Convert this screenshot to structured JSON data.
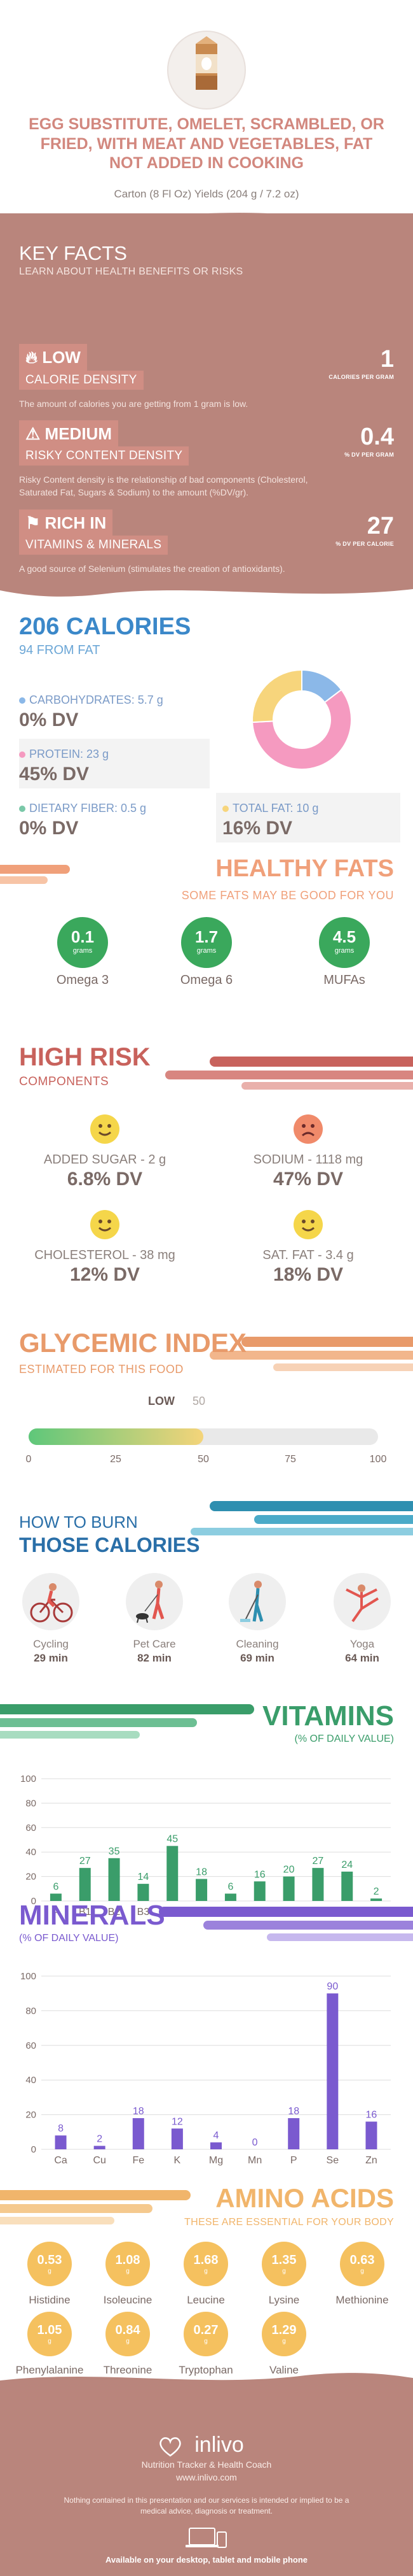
{
  "header": {
    "title": "EGG SUBSTITUTE, OMELET, SCRAMBLED, OR FRIED, WITH MEAT AND VEGETABLES, FAT NOT ADDED IN COOKING",
    "serving": "Carton (8 Fl Oz) Yields (204 g / 7.2 oz)"
  },
  "key_facts": {
    "title": "KEY FACTS",
    "subtitle": "LEARN ABOUT HEALTH BENEFITS OR RISKS",
    "items": [
      {
        "level": "LOW",
        "tag": "CALORIE DENSITY",
        "desc": "The amount of calories you are getting from 1 gram is low.",
        "value": "1",
        "unit": "CALORIES PER GRAM",
        "icon": "flame-icon"
      },
      {
        "level": "MEDIUM",
        "tag": "RISKY CONTENT DENSITY",
        "desc": "Risky Content density is the relationship of bad components (Cholesterol, Saturated Fat, Sugars & Sodium) to the amount (%DV/gr).",
        "value": "0.4",
        "unit": "% DV PER GRAM",
        "icon": "warning-icon"
      },
      {
        "level": "RICH IN",
        "tag": "VITAMINS & MINERALS",
        "desc": "A good source of Selenium (stimulates the creation of antioxidants).",
        "value": "27",
        "unit": "% DV PER CALORIE",
        "icon": "flag-icon"
      }
    ]
  },
  "calories": {
    "title": "206 CALORIES",
    "from_fat": "94 FROM FAT",
    "carbs_label": "CARBOHYDRATES: 5.7 g",
    "carbs_dv": "0% DV",
    "protein_label": "PROTEIN: 23 g",
    "protein_dv": "45% DV",
    "fiber_label": "DIETARY FIBER: 0.5 g",
    "fiber_dv": "0% DV",
    "fat_label": "TOTAL FAT: 10 g",
    "fat_dv": "16% DV",
    "donut": [
      {
        "name": "carbs",
        "value": 5.7,
        "color": "#8bb8e8"
      },
      {
        "name": "protein",
        "value": 23,
        "color": "#f59ac0"
      },
      {
        "name": "fat",
        "value": 10,
        "color": "#f7d57c"
      }
    ]
  },
  "fats": {
    "title": "HEALTHY FATS",
    "subtitle": "SOME FATS MAY BE GOOD FOR YOU",
    "unit": "grams",
    "items": [
      {
        "value": "0.1",
        "name": "Omega 3"
      },
      {
        "value": "1.7",
        "name": "Omega 6"
      },
      {
        "value": "4.5",
        "name": "MUFAs"
      }
    ]
  },
  "risk": {
    "title": "HIGH RISK",
    "subtitle": "COMPONENTS",
    "items": [
      {
        "label": "ADDED SUGAR - 2 g",
        "dv": "6.8% DV",
        "face": "happy",
        "color": "#f5d64a"
      },
      {
        "label": "SODIUM - 1118 mg",
        "dv": "47% DV",
        "face": "sad",
        "color": "#f08a6a"
      },
      {
        "label": "CHOLESTEROL - 38 mg",
        "dv": "12% DV",
        "face": "happy",
        "color": "#f5d64a"
      },
      {
        "label": "SAT. FAT - 3.4 g",
        "dv": "18% DV",
        "face": "happy",
        "color": "#f5d64a"
      }
    ]
  },
  "glycemic": {
    "title": "GLYCEMIC INDEX",
    "subtitle": "ESTIMATED FOR THIS FOOD",
    "level": "LOW",
    "value": "50",
    "fraction": 0.5,
    "ticks": [
      "0",
      "25",
      "50",
      "75",
      "100"
    ]
  },
  "burn": {
    "title1": "HOW TO BURN",
    "title2": "THOSE CALORIES",
    "items": [
      {
        "name": "Cycling",
        "min": "29 min",
        "icon": "cycling-icon"
      },
      {
        "name": "Pet Care",
        "min": "82 min",
        "icon": "dog-walking-icon"
      },
      {
        "name": "Cleaning",
        "min": "69 min",
        "icon": "cleaning-icon"
      },
      {
        "name": "Yoga",
        "min": "64 min",
        "icon": "yoga-icon"
      }
    ]
  },
  "vitamins": {
    "title": "VITAMINS",
    "subtitle": "(% OF DAILY VALUE)"
  },
  "minerals": {
    "title": "MINERALS",
    "subtitle": "(% OF DAILY VALUE)"
  },
  "chart_data": [
    {
      "type": "bar",
      "categories": [
        "A",
        "B1",
        "B2",
        "B3",
        "B5",
        "B6",
        "B9",
        "B12",
        "C",
        "D",
        "E",
        "K"
      ],
      "values": [
        6,
        27,
        35,
        14,
        45,
        18,
        6,
        16,
        20,
        27,
        24,
        2
      ],
      "ylim": [
        0,
        100
      ],
      "yticks": [
        0,
        20,
        40,
        60,
        80,
        100
      ],
      "color": "#3a9d6a",
      "grid": true
    },
    {
      "type": "bar",
      "categories": [
        "Ca",
        "Cu",
        "Fe",
        "K",
        "Mg",
        "Mn",
        "P",
        "Se",
        "Zn"
      ],
      "values": [
        8,
        2,
        18,
        12,
        4,
        0,
        18,
        90,
        16
      ],
      "ylim": [
        0,
        100
      ],
      "yticks": [
        0,
        20,
        40,
        60,
        80,
        100
      ],
      "color": "#7a5acf",
      "grid": true
    }
  ],
  "amino": {
    "title": "AMINO ACIDS",
    "subtitle": "THESE ARE ESSENTIAL FOR YOUR BODY",
    "unit": "g",
    "items": [
      {
        "value": "0.53",
        "name": "Histidine"
      },
      {
        "value": "1.08",
        "name": "Isoleucine"
      },
      {
        "value": "1.68",
        "name": "Leucine"
      },
      {
        "value": "1.35",
        "name": "Lysine"
      },
      {
        "value": "0.63",
        "name": "Methionine"
      },
      {
        "value": "1.05",
        "name": "Phenylalanine"
      },
      {
        "value": "0.84",
        "name": "Threonine"
      },
      {
        "value": "0.27",
        "name": "Tryptophan"
      },
      {
        "value": "1.29",
        "name": "Valine"
      }
    ]
  },
  "footer": {
    "brand": "inlivo",
    "tagline": "Nutrition Tracker & Health Coach",
    "url": "www.inlivo.com",
    "note": "Nothing contained in this presentation and our services is intended or implied to be a medical advice, diagnosis or treatment.",
    "available": "Available on your desktop, tablet and mobile phone"
  }
}
